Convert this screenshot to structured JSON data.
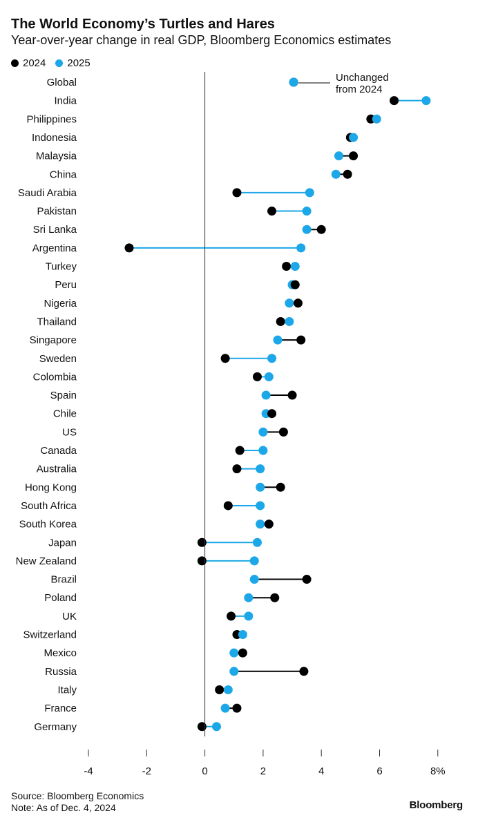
{
  "header": {
    "title": "The World Economy’s Turtles and Hares",
    "subtitle": "Year-over-year change in real GDP, Bloomberg Economics estimates"
  },
  "legend": {
    "items": [
      {
        "label": "2024",
        "color": "#000000"
      },
      {
        "label": "2025",
        "color": "#1ba7e8"
      }
    ]
  },
  "annotation": {
    "line1": "Unchanged",
    "line2": "from 2024"
  },
  "footer": {
    "source": "Source: Bloomberg Economics",
    "note": "Note: As of Dec. 4, 2024",
    "brand": "Bloomberg"
  },
  "chart_data": {
    "type": "dot-plot",
    "title": "The World Economy’s Turtles and Hares",
    "subtitle": "Year-over-year change in real GDP, Bloomberg Economics estimates",
    "xlim": [
      -4,
      8
    ],
    "x_ticks": [
      -4,
      -2,
      0,
      2,
      4,
      6,
      8
    ],
    "x_tick_labels": [
      "-4",
      "-2",
      "0",
      "2",
      "4",
      "6",
      "8%"
    ],
    "legend_position": "top-left",
    "grid": false,
    "colors": {
      "2024": "#000000",
      "2025": "#1ba7e8"
    },
    "categories": [
      "Global",
      "India",
      "Philippines",
      "Indonesia",
      "Malaysia",
      "China",
      "Saudi Arabia",
      "Pakistan",
      "Sri Lanka",
      "Argentina",
      "Turkey",
      "Peru",
      "Nigeria",
      "Thailand",
      "Singapore",
      "Sweden",
      "Colombia",
      "Spain",
      "Chile",
      "US",
      "Canada",
      "Australia",
      "Hong Kong",
      "South Africa",
      "South Korea",
      "Japan",
      "New Zealand",
      "Brazil",
      "Poland",
      "UK",
      "Switzerland",
      "Mexico",
      "Russia",
      "Italy",
      "France",
      "Germany"
    ],
    "series": [
      {
        "name": "2024",
        "values": [
          3.05,
          6.5,
          5.7,
          5.0,
          5.1,
          4.9,
          1.1,
          2.3,
          4.0,
          -2.6,
          2.8,
          3.1,
          3.2,
          2.6,
          3.3,
          0.7,
          1.8,
          3.0,
          2.3,
          2.7,
          1.2,
          1.1,
          2.6,
          0.8,
          2.2,
          -0.1,
          -0.1,
          3.5,
          2.4,
          0.9,
          1.1,
          1.3,
          3.4,
          0.5,
          1.1,
          -0.1
        ]
      },
      {
        "name": "2025",
        "values": [
          3.05,
          7.6,
          5.9,
          5.1,
          4.6,
          4.5,
          3.6,
          3.5,
          3.5,
          3.3,
          3.1,
          3.0,
          2.9,
          2.9,
          2.5,
          2.3,
          2.2,
          2.1,
          2.1,
          2.0,
          2.0,
          1.9,
          1.9,
          1.9,
          1.9,
          1.8,
          1.7,
          1.7,
          1.5,
          1.5,
          1.3,
          1.0,
          1.0,
          0.8,
          0.7,
          0.4
        ]
      }
    ]
  }
}
